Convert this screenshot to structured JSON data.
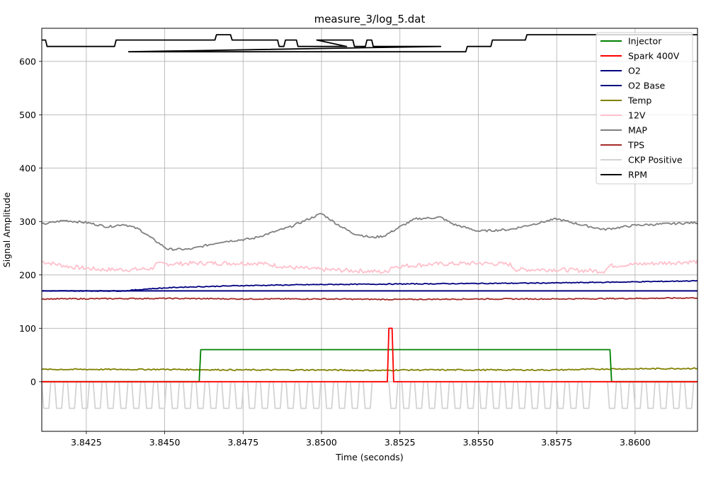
{
  "chart_data": {
    "type": "line",
    "title": "measure_3/log_5.dat",
    "xlabel": "Time (seconds)",
    "ylabel": "Signal Amplitude",
    "xlim": [
      3.84108,
      3.86199
    ],
    "ylim": [
      -93,
      662
    ],
    "grid": true,
    "legend_position": "upper right",
    "x_ticks": [
      "3.8425",
      "3.8450",
      "3.8475",
      "3.8500",
      "3.8525",
      "3.8550",
      "3.8575",
      "3.8600"
    ],
    "x_tick_values": [
      3.8425,
      3.845,
      3.8475,
      3.85,
      3.8525,
      3.855,
      3.8575,
      3.86
    ],
    "y_ticks": [
      "0",
      "100",
      "200",
      "300",
      "400",
      "500",
      "600"
    ],
    "y_tick_values": [
      0,
      100,
      200,
      300,
      400,
      500,
      600
    ],
    "series": [
      {
        "name": "Injector",
        "color": "#008000",
        "x": [
          3.84108,
          3.8461,
          3.84615,
          3.8592,
          3.85925,
          3.86199
        ],
        "y": [
          0,
          0,
          60,
          60,
          0,
          0
        ]
      },
      {
        "name": "Spark 400V",
        "color": "#ff0000",
        "x": [
          3.84108,
          3.8521,
          3.85215,
          3.85225,
          3.8523,
          3.86199
        ],
        "y": [
          0,
          0,
          100,
          100,
          0,
          0
        ]
      },
      {
        "name": "O2",
        "color": "#000080",
        "x": [
          3.84108,
          3.8437,
          3.8445,
          3.8455,
          3.8475,
          3.85,
          3.8525,
          3.855,
          3.8575,
          3.86,
          3.86199
        ],
        "y": [
          170,
          170,
          174,
          177,
          180,
          182,
          183,
          184,
          185,
          187,
          189
        ]
      },
      {
        "name": "O2 Base",
        "color": "#000080",
        "x": [
          3.84108,
          3.86199
        ],
        "y": [
          170,
          170
        ]
      },
      {
        "name": "Temp",
        "color": "#808000",
        "x": [
          3.84108,
          3.845,
          3.8475,
          3.85,
          3.852,
          3.8525,
          3.855,
          3.8575,
          3.8592,
          3.86,
          3.86199
        ],
        "y": [
          23,
          23,
          22,
          22,
          21,
          22,
          22,
          22,
          24,
          24,
          25
        ]
      },
      {
        "name": "12V",
        "color": "#ffc0cb",
        "x": [
          3.84108,
          3.842,
          3.843,
          3.844,
          3.8446,
          3.8447,
          3.846,
          3.848,
          3.849,
          3.85,
          3.8515,
          3.8521,
          3.8522,
          3.8535,
          3.855,
          3.856,
          3.8562,
          3.8575,
          3.859,
          3.8592,
          3.86,
          3.86199
        ],
        "y": [
          225,
          215,
          210,
          210,
          212,
          220,
          222,
          222,
          214,
          210,
          207,
          205,
          215,
          220,
          222,
          220,
          210,
          210,
          207,
          217,
          220,
          225
        ]
      },
      {
        "name": "MAP",
        "color": "#808080",
        "x": [
          3.84108,
          3.8418,
          3.8425,
          3.8432,
          3.8437,
          3.8442,
          3.8446,
          3.8451,
          3.8458,
          3.8468,
          3.8478,
          3.849,
          3.85,
          3.8505,
          3.851,
          3.8516,
          3.852,
          3.8525,
          3.853,
          3.8538,
          3.8542,
          3.855,
          3.856,
          3.8575,
          3.8582,
          3.859,
          3.86,
          3.86199
        ],
        "y": [
          295,
          302,
          298,
          290,
          295,
          285,
          268,
          248,
          248,
          262,
          268,
          290,
          315,
          295,
          278,
          270,
          273,
          290,
          305,
          308,
          295,
          282,
          285,
          305,
          295,
          285,
          293,
          298
        ]
      },
      {
        "name": "TPS",
        "color": "#a52a2a",
        "x": [
          3.84108,
          3.845,
          3.8475,
          3.85,
          3.8525,
          3.855,
          3.8575,
          3.86,
          3.86199
        ],
        "y": [
          155,
          156,
          155,
          155,
          154,
          155,
          155,
          156,
          157
        ]
      },
      {
        "name": "CKP Positive",
        "color": "#d3d3d3",
        "pattern": "square pulse train 0 to -50, period ~0.00041 s, gap near 3.8516",
        "x": [
          3.84108,
          3.86199
        ],
        "y": [
          0,
          -50
        ]
      },
      {
        "name": "RPM",
        "color": "#000000",
        "x": [
          3.84108,
          3.8412,
          3.84125,
          3.8434,
          3.84345,
          3.8466,
          3.84665,
          3.8471,
          3.84715,
          3.8486,
          3.84865,
          3.8488,
          3.84885,
          3.8492,
          3.84925,
          3.8508,
          3.84985,
          3.851,
          3.85105,
          3.8514,
          3.85145,
          3.8516,
          3.85165,
          3.8538,
          3.84385,
          3.8546,
          3.85465,
          3.8554,
          3.85545,
          3.8565,
          3.85655,
          3.86199
        ],
        "y": [
          640,
          640,
          628,
          628,
          640,
          640,
          650,
          650,
          640,
          640,
          628,
          628,
          640,
          640,
          628,
          628,
          640,
          640,
          628,
          628,
          640,
          640,
          628,
          628,
          618,
          618,
          628,
          628,
          640,
          640,
          650,
          650
        ]
      }
    ]
  }
}
